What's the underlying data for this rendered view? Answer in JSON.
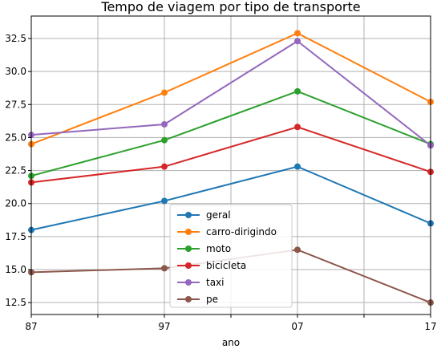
{
  "chart_data": {
    "type": "line",
    "title": "Tempo de viagem por tipo de transporte",
    "xlabel": "ano",
    "ylabel": "",
    "categories": [
      "87",
      "97",
      "07",
      "17"
    ],
    "x": [
      0,
      1,
      2,
      3
    ],
    "xlim": [
      0,
      3
    ],
    "ylim": [
      11.6,
      34.2
    ],
    "yticks": [
      12.5,
      15.0,
      17.5,
      20.0,
      22.5,
      25.0,
      27.5,
      30.0,
      32.5
    ],
    "ytick_labels": [
      "12.5",
      "15.0",
      "17.5",
      "20.0",
      "22.5",
      "25.0",
      "27.5",
      "30.0",
      "32.5"
    ],
    "grid": true,
    "legend_position": "lower-center",
    "series": [
      {
        "name": "geral",
        "color": "#1f77b4",
        "values": [
          18.0,
          20.2,
          22.8,
          18.5
        ]
      },
      {
        "name": "carro-dirigindo",
        "color": "#ff7f0e",
        "values": [
          24.5,
          28.4,
          32.9,
          27.7
        ]
      },
      {
        "name": "moto",
        "color": "#2ca02c",
        "values": [
          22.1,
          24.8,
          28.5,
          24.5
        ]
      },
      {
        "name": "bicicleta",
        "color": "#d62728",
        "values": [
          21.6,
          22.8,
          25.8,
          22.4
        ]
      },
      {
        "name": "taxi",
        "color": "#9467bd",
        "values": [
          25.2,
          26.0,
          32.3,
          24.4
        ]
      },
      {
        "name": "pe",
        "color": "#8c564b",
        "values": [
          14.8,
          15.1,
          16.5,
          12.5
        ]
      }
    ]
  }
}
